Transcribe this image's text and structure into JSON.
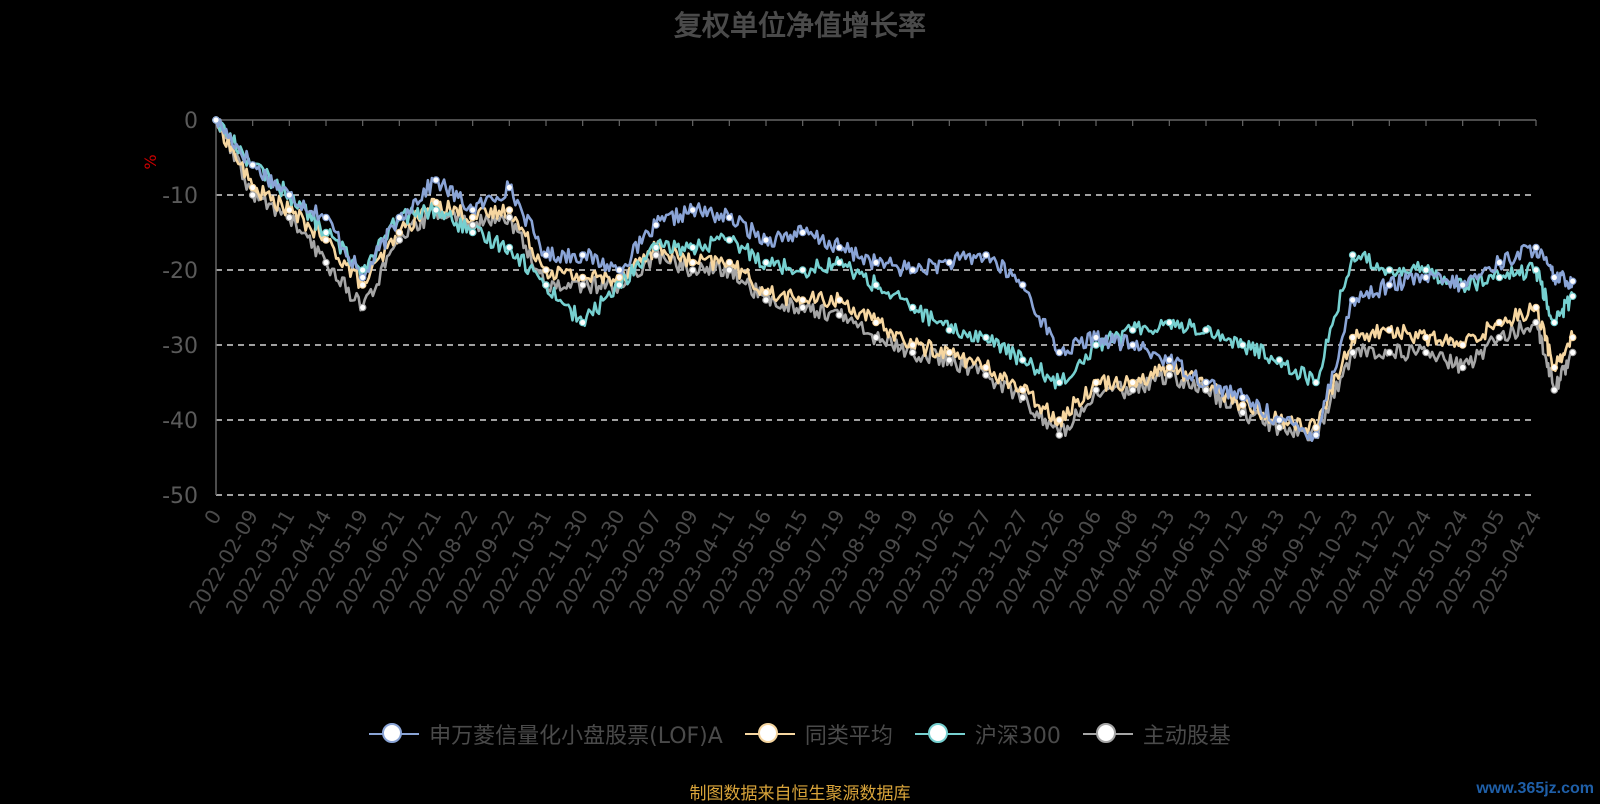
{
  "chart_data": {
    "type": "line",
    "title": "复权单位净值增长率",
    "ylabel": "%",
    "ylim": [
      -50,
      0
    ],
    "yticks": [
      0,
      -10,
      -20,
      -30,
      -40,
      -50
    ],
    "grid": "horizontal-dashed",
    "legend_position": "bottom",
    "x_tick_labels": [
      "0",
      "2022-02-09",
      "2022-03-11",
      "2022-04-14",
      "2022-05-19",
      "2022-06-21",
      "2022-07-21",
      "2022-08-22",
      "2022-09-22",
      "2022-10-31",
      "2022-11-30",
      "2022-12-30",
      "2023-02-07",
      "2023-03-09",
      "2023-04-11",
      "2023-05-16",
      "2023-06-15",
      "2023-07-19",
      "2023-08-18",
      "2023-09-19",
      "2023-10-26",
      "2023-11-27",
      "2023-12-27",
      "2024-01-26",
      "2024-03-06",
      "2024-04-08",
      "2024-05-13",
      "2024-06-13",
      "2024-07-12",
      "2024-08-13",
      "2024-09-12",
      "2024-10-23",
      "2024-11-22",
      "2024-12-24",
      "2025-01-24",
      "2025-03-05",
      "2025-04-24"
    ],
    "x_anchor_positions": [
      0,
      1,
      2,
      3,
      4,
      5,
      6,
      7,
      8,
      9,
      10,
      11,
      12,
      13,
      14,
      15,
      16,
      17,
      18,
      19,
      20,
      21,
      22,
      23,
      24,
      25,
      26,
      27,
      28,
      29,
      30,
      31,
      32,
      33,
      34,
      35,
      36,
      36.5,
      37
    ],
    "series": [
      {
        "name": "申万菱信量化小盘股票(LOF)A",
        "color": "#8aa4d6",
        "values": [
          0,
          -6,
          -10,
          -13,
          -21,
          -13,
          -8,
          -12,
          -9,
          -18,
          -18,
          -20,
          -14,
          -12,
          -13,
          -16,
          -15,
          -17,
          -19,
          -20,
          -19,
          -18,
          -22,
          -31,
          -29,
          -30,
          -32,
          -35,
          -37,
          -40,
          -42,
          -24,
          -22,
          -21,
          -22,
          -19,
          -17,
          -21,
          -21.5
        ]
      },
      {
        "name": "同类平均",
        "color": "#f6d6a0",
        "values": [
          0,
          -9,
          -12,
          -16,
          -22,
          -15,
          -11,
          -13,
          -12,
          -20,
          -21,
          -21,
          -17,
          -19,
          -19,
          -23,
          -24,
          -24,
          -27,
          -30,
          -31,
          -33,
          -36,
          -40,
          -35,
          -35,
          -33,
          -35,
          -38,
          -40,
          -41,
          -29,
          -28,
          -29,
          -30,
          -27,
          -25,
          -33,
          -29
        ]
      },
      {
        "name": "沪深300",
        "color": "#76d0d0",
        "values": [
          0,
          -6,
          -10,
          -15,
          -20,
          -13,
          -12,
          -15,
          -17,
          -22,
          -27,
          -22,
          -17,
          -17,
          -16,
          -19,
          -20,
          -19,
          -22,
          -25,
          -28,
          -29,
          -32,
          -35,
          -30,
          -28,
          -27,
          -28,
          -30,
          -32,
          -35,
          -18,
          -20,
          -20,
          -22,
          -21,
          -20,
          -27,
          -23.5
        ]
      },
      {
        "name": "主动股基",
        "color": "#a5a5a5",
        "values": [
          0,
          -10,
          -13,
          -19,
          -25,
          -16,
          -12,
          -14,
          -13,
          -22,
          -22,
          -22,
          -18,
          -20,
          -20,
          -24,
          -25,
          -26,
          -29,
          -31,
          -32,
          -34,
          -37,
          -42,
          -36,
          -36,
          -34,
          -36,
          -39,
          -41,
          -42,
          -31,
          -31,
          -31,
          -33,
          -29,
          -27,
          -36,
          -31
        ]
      }
    ]
  },
  "legend": {
    "items": [
      {
        "label": "申万菱信量化小盘股票(LOF)A",
        "color": "#8aa4d6"
      },
      {
        "label": "同类平均",
        "color": "#f6d6a0"
      },
      {
        "label": "沪深300",
        "color": "#76d0d0"
      },
      {
        "label": "主动股基",
        "color": "#a5a5a5"
      }
    ]
  },
  "footer": {
    "source_note": "制图数据来自恒生聚源数据库",
    "watermark": "www.365jz.com"
  }
}
